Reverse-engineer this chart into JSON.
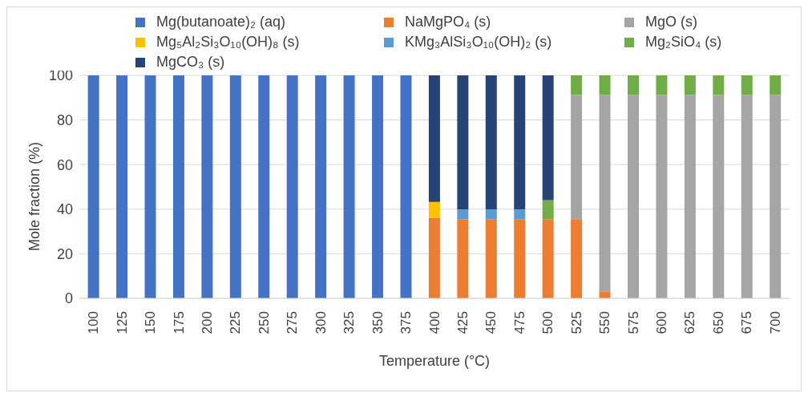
{
  "chart_data": {
    "type": "bar",
    "stacked": true,
    "xlabel": "Temperature (°C)",
    "ylabel": "Mole fraction (%)",
    "categories": [
      "100",
      "125",
      "150",
      "175",
      "200",
      "225",
      "250",
      "275",
      "300",
      "325",
      "350",
      "375",
      "400",
      "425",
      "450",
      "475",
      "500",
      "525",
      "550",
      "575",
      "600",
      "625",
      "650",
      "675",
      "700"
    ],
    "series": [
      {
        "name": "Mg(butanoate)₂ (aq)",
        "color": "#4472c4",
        "values": [
          100,
          100,
          100,
          100,
          100,
          100,
          100,
          100,
          100,
          100,
          100,
          100,
          null,
          null,
          null,
          null,
          null,
          null,
          null,
          null,
          null,
          null,
          null,
          null,
          null
        ]
      },
      {
        "name": "NaMgPO₄ (s)",
        "color": "#ed7d31",
        "values": [
          null,
          null,
          null,
          null,
          null,
          null,
          null,
          null,
          null,
          null,
          null,
          null,
          36,
          35.5,
          35.5,
          35.5,
          35.5,
          35.5,
          3,
          null,
          null,
          null,
          null,
          null,
          null
        ]
      },
      {
        "name": "MgO (s)",
        "color": "#a5a5a5",
        "values": [
          null,
          null,
          null,
          null,
          null,
          null,
          null,
          null,
          null,
          null,
          null,
          null,
          null,
          null,
          null,
          null,
          null,
          55.7,
          88.2,
          91.2,
          91.2,
          91.2,
          91.2,
          91.2,
          91.2
        ]
      },
      {
        "name": "Mg₅Al₂Si₃O₁₀(OH)₈ (s)",
        "color": "#ffc000",
        "values": [
          null,
          null,
          null,
          null,
          null,
          null,
          null,
          null,
          null,
          null,
          null,
          null,
          7.3,
          null,
          null,
          null,
          null,
          null,
          null,
          null,
          null,
          null,
          null,
          null,
          null
        ]
      },
      {
        "name": "KMg₃AlSi₃O₁₀(OH)₂ (s)",
        "color": "#5b9bd5",
        "values": [
          null,
          null,
          null,
          null,
          null,
          null,
          null,
          null,
          null,
          null,
          null,
          null,
          null,
          4.3,
          4.3,
          4.3,
          null,
          null,
          null,
          null,
          null,
          null,
          null,
          null,
          null
        ]
      },
      {
        "name": "Mg₂SiO₄ (s)",
        "color": "#70ad47",
        "values": [
          null,
          null,
          null,
          null,
          null,
          null,
          null,
          null,
          null,
          null,
          null,
          null,
          null,
          null,
          null,
          null,
          8.6,
          8.8,
          8.8,
          8.8,
          8.8,
          8.8,
          8.8,
          8.8,
          8.8
        ]
      },
      {
        "name": "MgCO₃ (s)",
        "color": "#264478",
        "values": [
          null,
          null,
          null,
          null,
          null,
          null,
          null,
          null,
          null,
          null,
          null,
          null,
          56.7,
          60.2,
          60.2,
          60.2,
          55.9,
          null,
          null,
          null,
          null,
          null,
          null,
          null,
          null
        ]
      }
    ],
    "ylim": [
      0,
      100
    ],
    "yticks": [
      0,
      20,
      40,
      60,
      80,
      100
    ],
    "grid": "y",
    "legend": "top"
  }
}
